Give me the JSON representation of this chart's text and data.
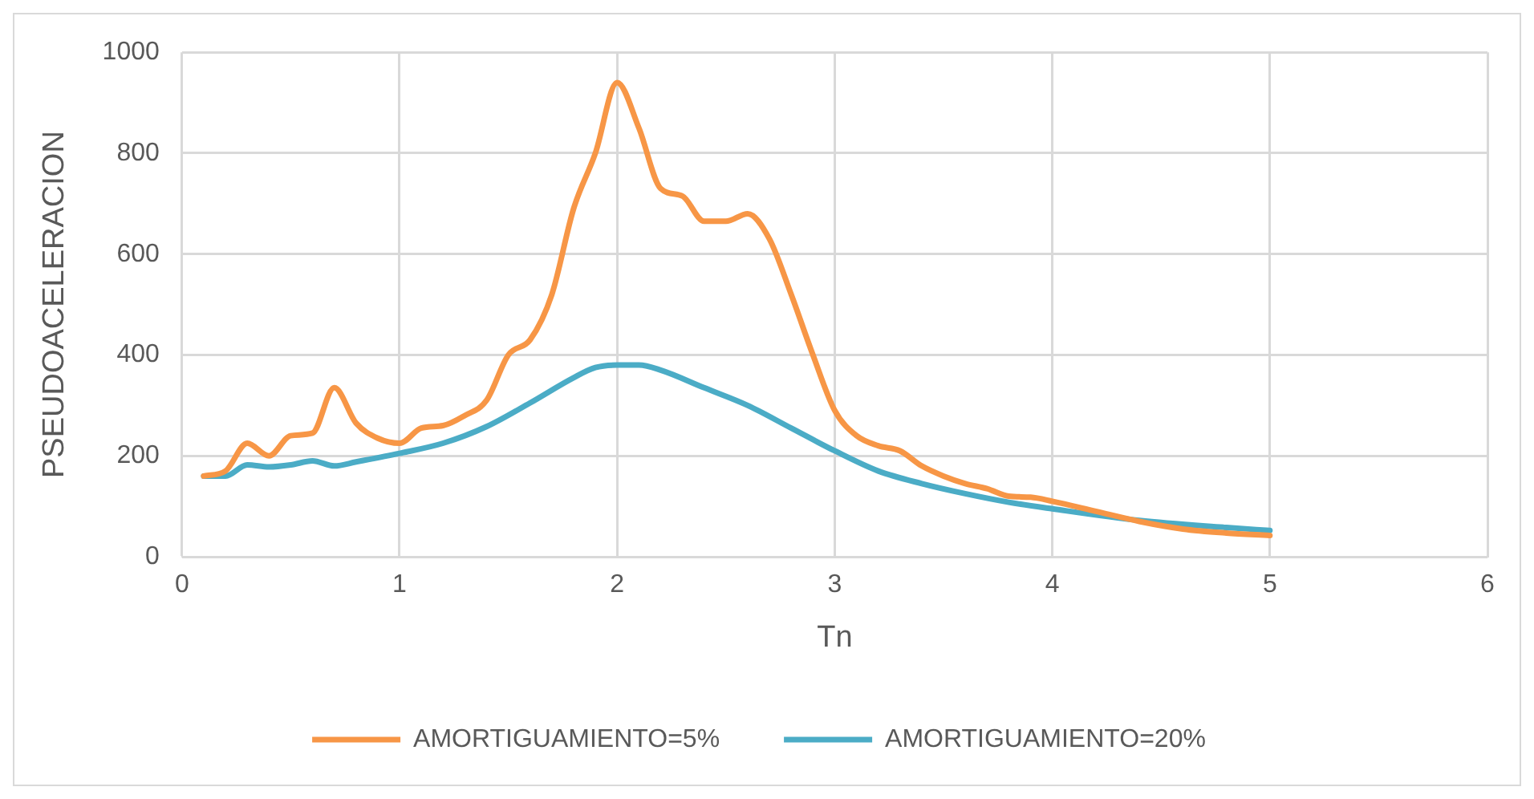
{
  "chart_data": {
    "type": "line",
    "xlabel": "Tn",
    "ylabel": "PSEUDOACELERACION",
    "xlim": [
      0,
      6
    ],
    "xticks": [
      0,
      1,
      2,
      3,
      4,
      5,
      6
    ],
    "ylim": [
      0,
      1000
    ],
    "yticks": [
      0,
      200,
      400,
      600,
      800,
      1000
    ],
    "grid": true,
    "legend": "bottom",
    "marker": "none",
    "line_style": "solid",
    "series": [
      {
        "name": "AMORTIGUAMIENTO=5%",
        "color": "#f79646",
        "x": [
          0.1,
          0.2,
          0.3,
          0.4,
          0.5,
          0.6,
          0.7,
          0.8,
          0.9,
          1.0,
          1.1,
          1.2,
          1.3,
          1.4,
          1.5,
          1.6,
          1.7,
          1.8,
          1.9,
          2.0,
          2.1,
          2.2,
          2.3,
          2.4,
          2.5,
          2.6,
          2.7,
          2.8,
          2.9,
          3.0,
          3.1,
          3.2,
          3.3,
          3.4,
          3.5,
          3.6,
          3.7,
          3.8,
          3.9,
          4.0,
          4.2,
          4.4,
          4.6,
          4.8,
          5.0
        ],
        "values": [
          160,
          170,
          225,
          200,
          240,
          245,
          335,
          265,
          235,
          225,
          255,
          260,
          280,
          310,
          400,
          430,
          520,
          690,
          800,
          940,
          850,
          730,
          715,
          665,
          665,
          680,
          630,
          520,
          400,
          290,
          240,
          220,
          210,
          180,
          160,
          145,
          135,
          120,
          118,
          110,
          90,
          70,
          55,
          47,
          42
        ]
      },
      {
        "name": "AMORTIGUAMIENTO=20%",
        "color": "#4bacc6",
        "x": [
          0.1,
          0.2,
          0.3,
          0.4,
          0.5,
          0.6,
          0.7,
          0.8,
          1.0,
          1.2,
          1.4,
          1.6,
          1.8,
          1.9,
          2.0,
          2.1,
          2.2,
          2.4,
          2.6,
          2.8,
          3.0,
          3.2,
          3.4,
          3.6,
          3.8,
          4.0,
          4.4,
          4.8,
          5.0
        ],
        "values": [
          160,
          160,
          182,
          178,
          182,
          190,
          180,
          188,
          205,
          225,
          258,
          305,
          355,
          375,
          380,
          380,
          370,
          335,
          300,
          255,
          210,
          170,
          145,
          125,
          108,
          95,
          72,
          58,
          52
        ]
      }
    ]
  }
}
